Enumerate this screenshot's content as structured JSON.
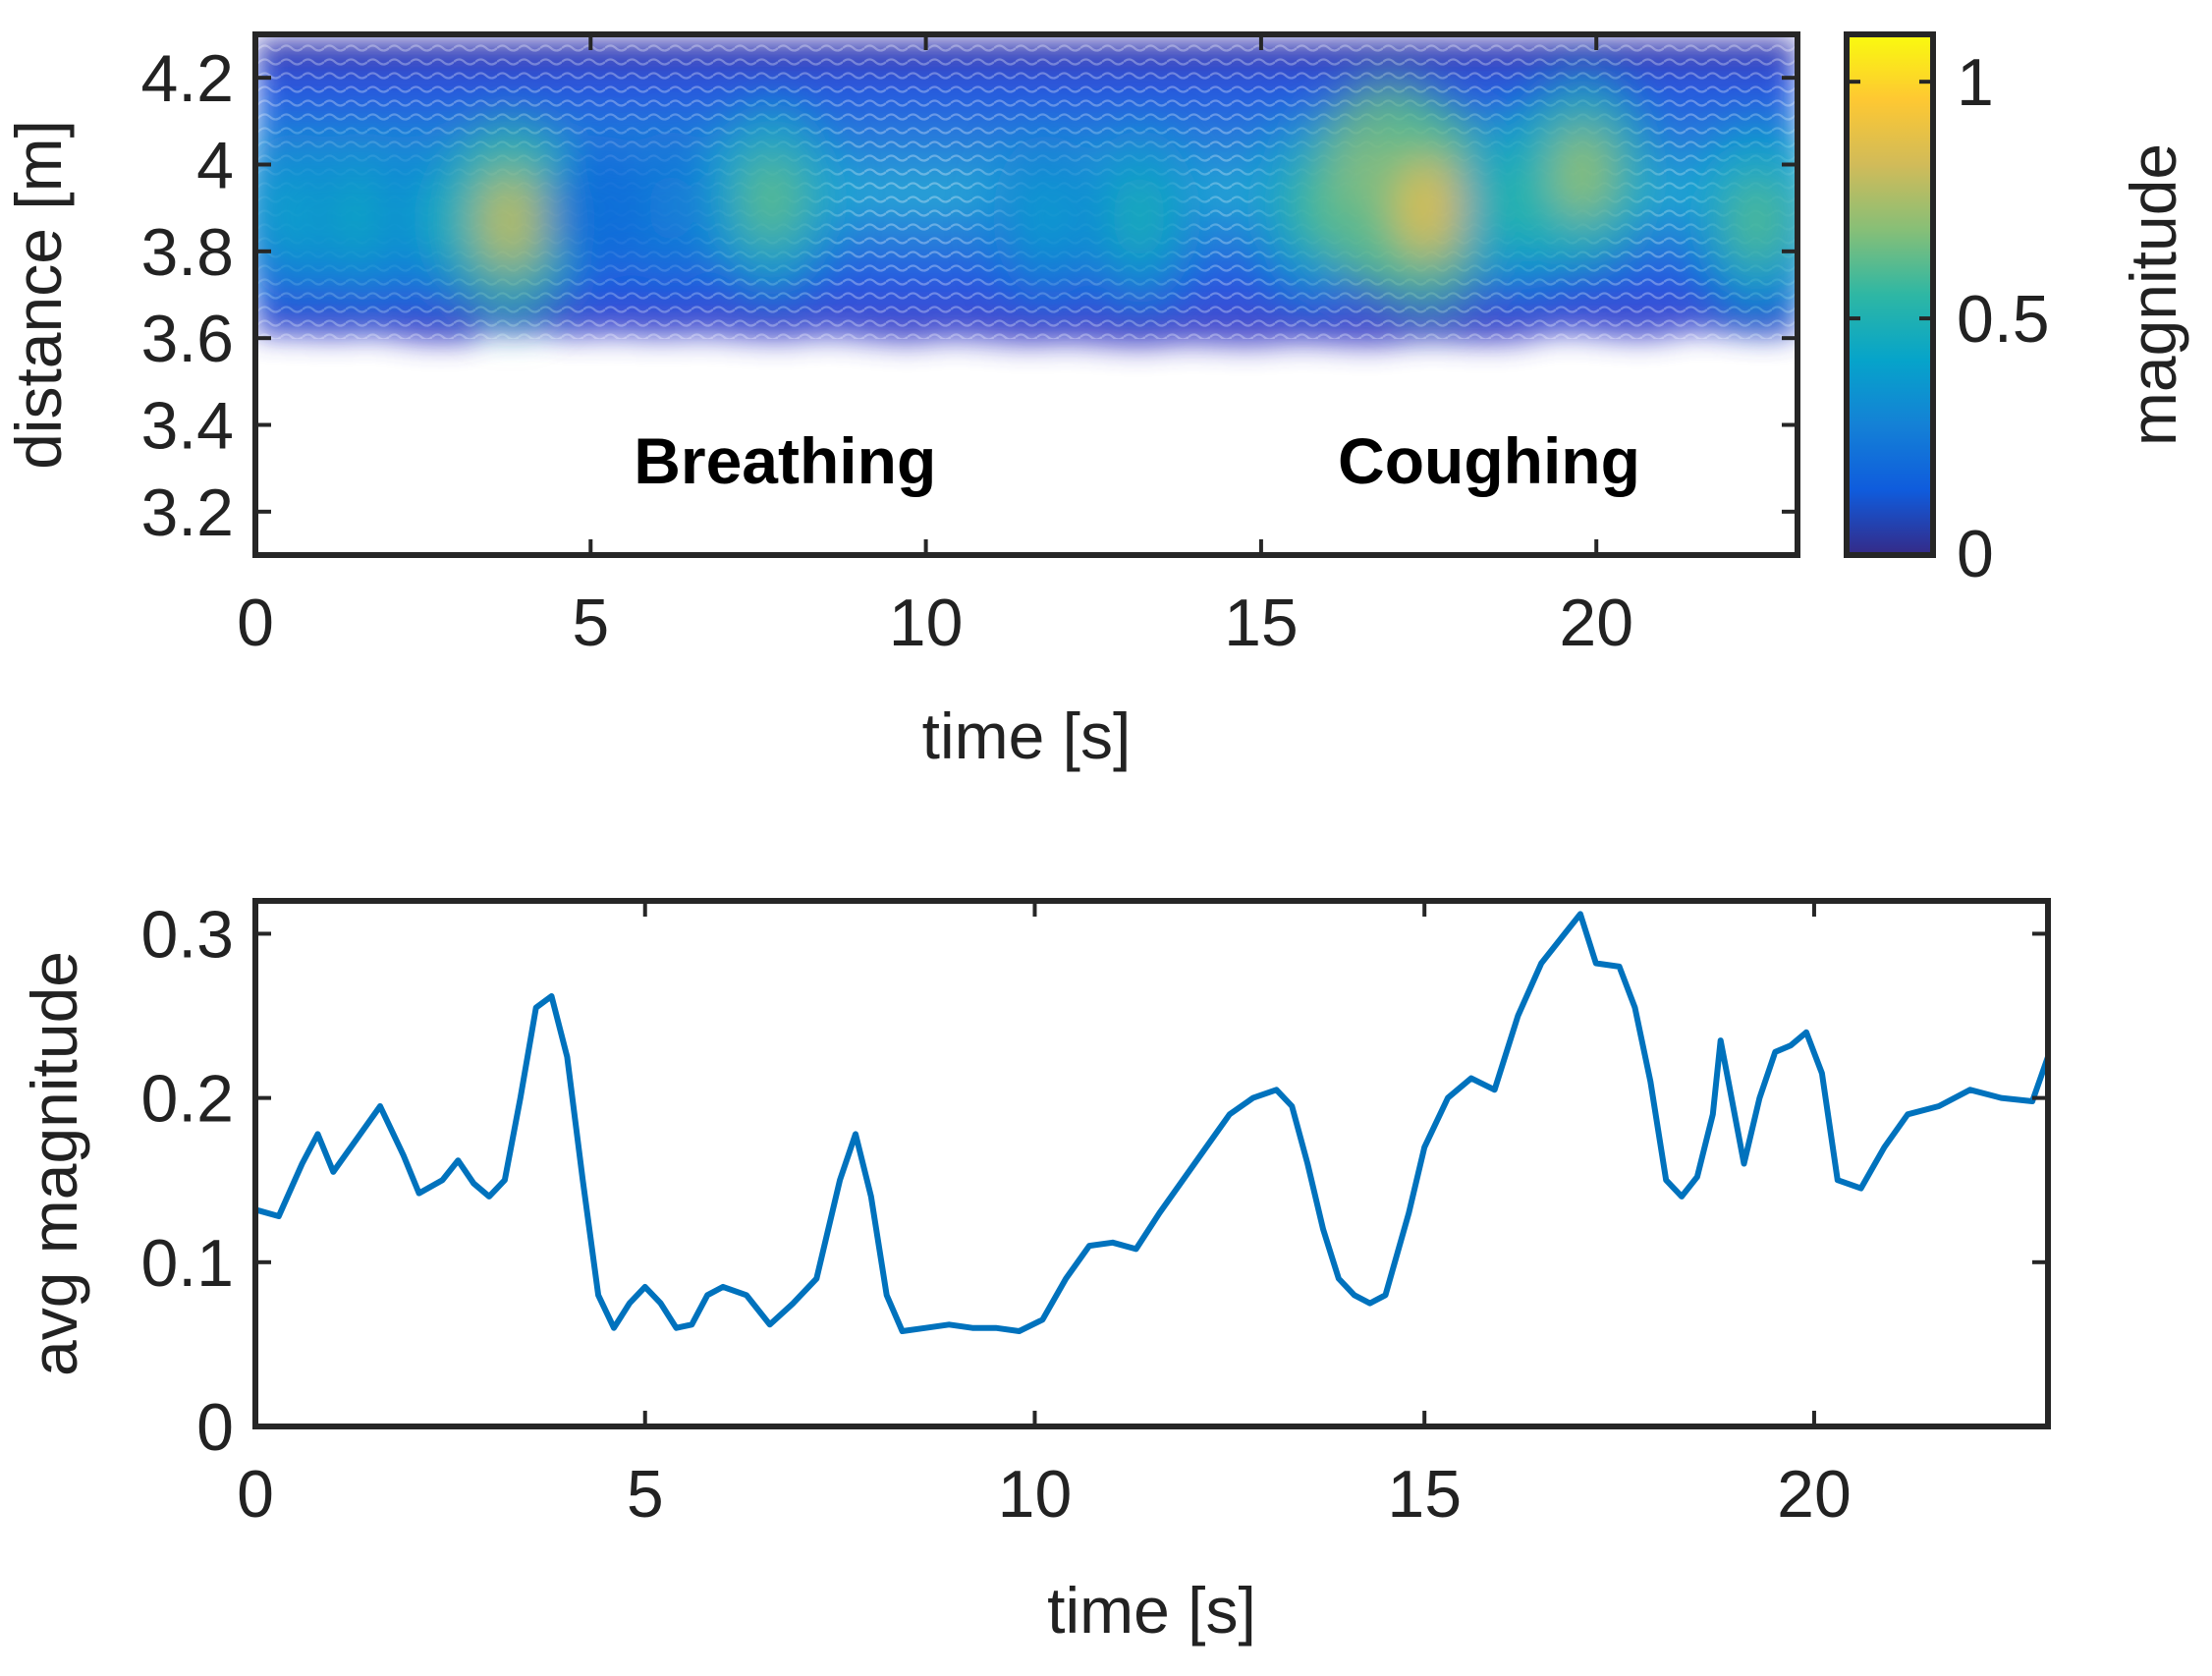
{
  "chart_data": [
    {
      "type": "heatmap",
      "xlabel": "time [s]",
      "ylabel": "distance [m]",
      "xlim": [
        0,
        23
      ],
      "ylim": [
        3.1,
        4.3
      ],
      "xticks": [
        0,
        5,
        10,
        15,
        20
      ],
      "xtick_labels": [
        "0",
        "5",
        "10",
        "15",
        "20"
      ],
      "yticks": [
        3.2,
        3.4,
        3.6,
        3.8,
        4.0,
        4.2
      ],
      "ytick_labels": [
        "3.2",
        "3.4",
        "3.6",
        "3.8",
        "4",
        "4.2"
      ],
      "colorbar": {
        "label": "magnitude",
        "range": [
          0,
          1.1
        ],
        "ticks": [
          0,
          0.5,
          1
        ],
        "tick_labels": [
          "0",
          "0.5",
          "1"
        ],
        "colors": [
          "#352a87",
          "#0f5cdd",
          "#1481d6",
          "#06a4ca",
          "#2eb7a4",
          "#87bf77",
          "#d1bb59",
          "#fec832",
          "#f9fb0e"
        ]
      },
      "annotations": [
        {
          "text": "Breathing",
          "x": 7.9,
          "y": 3.32
        },
        {
          "text": "Coughing",
          "x": 18.4,
          "y": 3.32
        }
      ],
      "band": {
        "lower_edge_m": 3.6,
        "upper_edge_m": 4.3,
        "center_m": 3.9
      },
      "hotspots": [
        {
          "t": 0.6,
          "d": 3.88,
          "mag": 0.42
        },
        {
          "t": 1.6,
          "d": 3.88,
          "mag": 0.45
        },
        {
          "t": 2.6,
          "d": 3.88,
          "mag": 0.4
        },
        {
          "t": 3.8,
          "d": 3.87,
          "mag": 0.78
        },
        {
          "t": 5.1,
          "d": 3.9,
          "mag": 0.22
        },
        {
          "t": 6.2,
          "d": 3.9,
          "mag": 0.28
        },
        {
          "t": 7.7,
          "d": 3.92,
          "mag": 0.62
        },
        {
          "t": 11.8,
          "d": 3.88,
          "mag": 0.38
        },
        {
          "t": 13.2,
          "d": 3.88,
          "mag": 0.48
        },
        {
          "t": 15.8,
          "d": 3.9,
          "mag": 0.55
        },
        {
          "t": 16.9,
          "d": 3.95,
          "mag": 0.92
        },
        {
          "t": 17.5,
          "d": 3.9,
          "mag": 0.85
        },
        {
          "t": 18.9,
          "d": 3.92,
          "mag": 0.55
        },
        {
          "t": 19.8,
          "d": 3.98,
          "mag": 0.7
        },
        {
          "t": 22.4,
          "d": 3.87,
          "mag": 0.6
        }
      ]
    },
    {
      "type": "line",
      "xlabel": "time [s]",
      "ylabel": "avg magnitude",
      "xlim": [
        0,
        23
      ],
      "ylim": [
        0,
        0.32
      ],
      "xticks": [
        0,
        5,
        10,
        15,
        20
      ],
      "xtick_labels": [
        "0",
        "5",
        "10",
        "15",
        "20"
      ],
      "yticks": [
        0,
        0.1,
        0.2,
        0.3
      ],
      "ytick_labels": [
        "0",
        "0.1",
        "0.2",
        "0.3"
      ],
      "color": "#0072bd",
      "x": [
        0,
        0.3,
        0.6,
        0.8,
        1.0,
        1.3,
        1.6,
        1.9,
        2.1,
        2.4,
        2.6,
        2.8,
        3.0,
        3.2,
        3.4,
        3.6,
        3.8,
        4.0,
        4.2,
        4.4,
        4.6,
        4.8,
        5.0,
        5.2,
        5.4,
        5.6,
        5.8,
        6.0,
        6.3,
        6.6,
        6.9,
        7.2,
        7.5,
        7.7,
        7.9,
        8.1,
        8.3,
        8.6,
        8.9,
        9.2,
        9.5,
        9.8,
        10.1,
        10.4,
        10.7,
        11.0,
        11.3,
        11.6,
        11.9,
        12.2,
        12.5,
        12.8,
        13.1,
        13.3,
        13.5,
        13.7,
        13.9,
        14.1,
        14.3,
        14.5,
        14.8,
        15.0,
        15.3,
        15.6,
        15.9,
        16.2,
        16.5,
        16.8,
        17.0,
        17.2,
        17.5,
        17.7,
        17.9,
        18.1,
        18.3,
        18.5,
        18.7,
        18.8,
        18.9,
        19.1,
        19.3,
        19.5,
        19.7,
        19.9,
        20.1,
        20.3,
        20.6,
        20.9,
        21.2,
        21.6,
        22.0,
        22.4,
        22.8,
        23.0
      ],
      "y": [
        0.132,
        0.128,
        0.16,
        0.178,
        0.155,
        0.175,
        0.195,
        0.165,
        0.142,
        0.15,
        0.162,
        0.148,
        0.14,
        0.15,
        0.2,
        0.255,
        0.262,
        0.225,
        0.15,
        0.08,
        0.06,
        0.075,
        0.085,
        0.075,
        0.06,
        0.062,
        0.08,
        0.085,
        0.08,
        0.062,
        0.075,
        0.09,
        0.15,
        0.178,
        0.14,
        0.08,
        0.058,
        0.06,
        0.062,
        0.06,
        0.06,
        0.058,
        0.065,
        0.09,
        0.11,
        0.112,
        0.108,
        0.13,
        0.15,
        0.17,
        0.19,
        0.2,
        0.205,
        0.195,
        0.16,
        0.12,
        0.09,
        0.08,
        0.075,
        0.08,
        0.13,
        0.17,
        0.2,
        0.212,
        0.205,
        0.25,
        0.282,
        0.3,
        0.312,
        0.282,
        0.28,
        0.255,
        0.21,
        0.15,
        0.14,
        0.152,
        0.19,
        0.235,
        0.21,
        0.16,
        0.2,
        0.228,
        0.232,
        0.24,
        0.215,
        0.15,
        0.145,
        0.17,
        0.19,
        0.195,
        0.205,
        0.2,
        0.198,
        0.225
      ]
    }
  ]
}
